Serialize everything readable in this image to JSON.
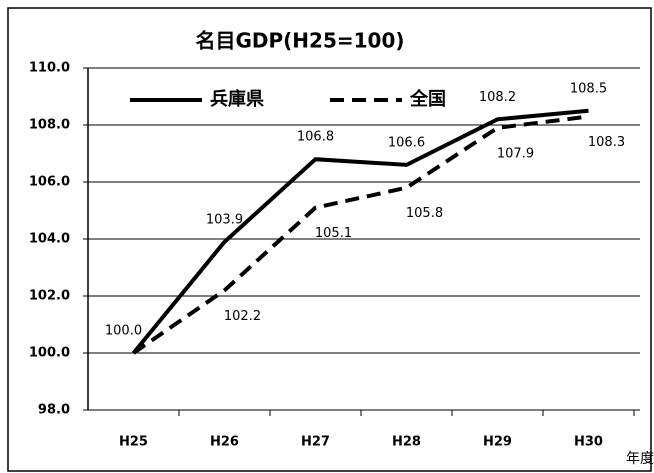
{
  "chart_data": {
    "type": "line",
    "title": "名目GDP(H25=100)",
    "x_label": "年度",
    "categories": [
      "H25",
      "H26",
      "H27",
      "H28",
      "H29",
      "H30"
    ],
    "series": [
      {
        "name": "兵庫県",
        "color": "#000000",
        "dash": "solid",
        "values": [
          100.0,
          103.9,
          106.8,
          106.6,
          108.2,
          108.5
        ],
        "value_labels": [
          "100.0",
          "103.9",
          "106.8",
          "106.6",
          "108.2",
          "108.5"
        ]
      },
      {
        "name": "全国",
        "color": "#000000",
        "dash": "dashed",
        "values": [
          100.0,
          102.2,
          105.1,
          105.8,
          107.9,
          108.3
        ],
        "value_labels": [
          null,
          "102.2",
          "105.1",
          "105.8",
          "107.9",
          "108.3"
        ]
      }
    ],
    "ylim": [
      98,
      110
    ],
    "yticks": [
      {
        "value": 98,
        "label": "98.0"
      },
      {
        "value": 100,
        "label": "100.0"
      },
      {
        "value": 102,
        "label": "102.0"
      },
      {
        "value": 104,
        "label": "104.0"
      },
      {
        "value": 106,
        "label": "106.0"
      },
      {
        "value": 108,
        "label": "108.0"
      },
      {
        "value": 110,
        "label": "110.0"
      }
    ],
    "grid": true,
    "legend": "top-left"
  }
}
